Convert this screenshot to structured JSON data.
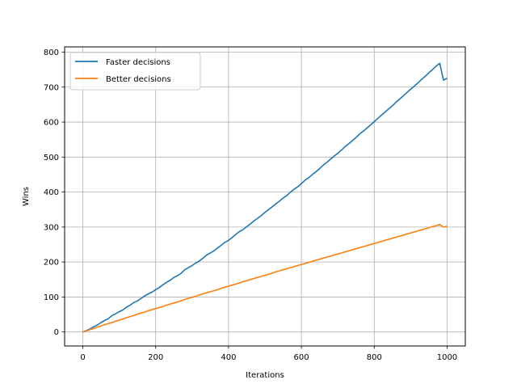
{
  "chart_data": {
    "type": "line",
    "title": "",
    "xlabel": "Iterations",
    "ylabel": "Wins",
    "xlim": [
      -50,
      1050
    ],
    "ylim": [
      -40,
      815
    ],
    "xticks": [
      0,
      200,
      400,
      600,
      800,
      1000
    ],
    "yticks": [
      0,
      100,
      200,
      300,
      400,
      500,
      600,
      700,
      800
    ],
    "grid": true,
    "legend_position": "top-left",
    "series": [
      {
        "name": "Faster decisions",
        "color": "#1f77b4",
        "x": [
          0,
          10,
          20,
          30,
          40,
          50,
          60,
          70,
          80,
          90,
          100,
          110,
          120,
          130,
          140,
          150,
          160,
          170,
          180,
          190,
          200,
          210,
          220,
          230,
          240,
          250,
          260,
          270,
          280,
          290,
          300,
          310,
          320,
          330,
          340,
          350,
          360,
          370,
          380,
          390,
          400,
          410,
          420,
          430,
          440,
          450,
          460,
          470,
          480,
          490,
          500,
          510,
          520,
          530,
          540,
          550,
          560,
          570,
          580,
          590,
          600,
          610,
          620,
          630,
          640,
          650,
          660,
          670,
          680,
          690,
          700,
          710,
          720,
          730,
          740,
          750,
          760,
          770,
          780,
          790,
          800,
          810,
          820,
          830,
          840,
          850,
          860,
          870,
          880,
          890,
          900,
          910,
          920,
          930,
          940,
          950,
          960,
          970,
          980,
          990,
          1000
        ],
        "y": [
          0,
          4,
          9,
          15,
          20,
          27,
          33,
          38,
          47,
          52,
          58,
          63,
          71,
          77,
          84,
          89,
          96,
          103,
          109,
          114,
          121,
          127,
          135,
          142,
          148,
          156,
          161,
          168,
          178,
          184,
          190,
          197,
          203,
          211,
          220,
          226,
          232,
          240,
          248,
          256,
          262,
          270,
          279,
          287,
          293,
          301,
          309,
          318,
          325,
          333,
          342,
          350,
          358,
          366,
          374,
          383,
          390,
          400,
          408,
          415,
          424,
          434,
          441,
          450,
          458,
          467,
          477,
          485,
          494,
          503,
          511,
          520,
          530,
          538,
          547,
          556,
          566,
          574,
          583,
          592,
          601,
          611,
          620,
          629,
          638,
          647,
          657,
          666,
          675,
          685,
          694,
          703,
          712,
          722,
          731,
          741,
          750,
          760,
          768,
          720,
          725
        ]
      },
      {
        "name": "Better decisions",
        "color": "#ff7f0e",
        "x": [
          0,
          10,
          20,
          30,
          40,
          50,
          60,
          70,
          80,
          90,
          100,
          110,
          120,
          130,
          140,
          150,
          160,
          170,
          180,
          190,
          200,
          210,
          220,
          230,
          240,
          250,
          260,
          270,
          280,
          290,
          300,
          310,
          320,
          330,
          340,
          350,
          360,
          370,
          380,
          390,
          400,
          410,
          420,
          430,
          440,
          450,
          460,
          470,
          480,
          490,
          500,
          510,
          520,
          530,
          540,
          550,
          560,
          570,
          580,
          590,
          600,
          610,
          620,
          630,
          640,
          650,
          660,
          670,
          680,
          690,
          700,
          710,
          720,
          730,
          740,
          750,
          760,
          770,
          780,
          790,
          800,
          810,
          820,
          830,
          840,
          850,
          860,
          870,
          880,
          890,
          900,
          910,
          920,
          930,
          940,
          950,
          960,
          970,
          980,
          990,
          1000
        ],
        "y": [
          0,
          3,
          7,
          10,
          14,
          17,
          21,
          24,
          27,
          31,
          34,
          37,
          41,
          44,
          47,
          51,
          54,
          57,
          61,
          64,
          67,
          70,
          73,
          77,
          80,
          83,
          86,
          89,
          93,
          96,
          99,
          102,
          106,
          109,
          112,
          115,
          118,
          121,
          125,
          128,
          131,
          134,
          137,
          140,
          144,
          147,
          150,
          153,
          156,
          159,
          162,
          165,
          168,
          172,
          175,
          178,
          181,
          184,
          187,
          190,
          193,
          196,
          199,
          202,
          205,
          208,
          211,
          214,
          217,
          220,
          223,
          226,
          229,
          232,
          235,
          238,
          241,
          244,
          247,
          250,
          253,
          256,
          259,
          262,
          265,
          268,
          271,
          274,
          277,
          280,
          283,
          286,
          289,
          292,
          295,
          298,
          301,
          304,
          307,
          300,
          302
        ]
      }
    ]
  }
}
